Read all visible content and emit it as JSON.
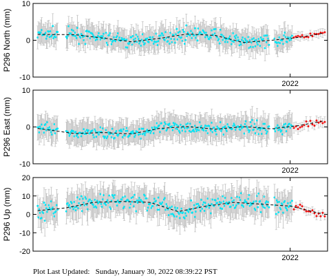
{
  "chart_data": [
    {
      "type": "scatter",
      "title": "",
      "ylabel": "P296 North (mm)",
      "ylim": [
        -10,
        10
      ],
      "yticks": [
        -10,
        0,
        10
      ],
      "xlim": [
        2019.25,
        2022.4
      ],
      "xtick_label": "2022",
      "xtick_value": 2022.0,
      "grid": false,
      "trend": {
        "x": [
          2019.3,
          2019.7,
          2020.0,
          2020.3,
          2020.6,
          2020.9,
          2021.2,
          2021.5,
          2021.8,
          2022.1,
          2022.35
        ],
        "y": [
          1.6,
          1.5,
          0.6,
          -0.4,
          0.5,
          1.7,
          1.3,
          -0.6,
          0.0,
          0.8,
          1.9
        ]
      },
      "series": [
        {
          "color": "#00e5f5",
          "region": [
            2019.3,
            2022.02
          ],
          "scatter": 2.2,
          "error": 2.8
        },
        {
          "color": "#ee1111",
          "region": [
            2022.04,
            2022.38
          ],
          "scatter": 0.9,
          "error": 1.0
        }
      ]
    },
    {
      "type": "scatter",
      "title": "",
      "ylabel": "P296 East (mm)",
      "ylim": [
        -10,
        10
      ],
      "yticks": [
        -10,
        0,
        10
      ],
      "xlim": [
        2019.25,
        2022.4
      ],
      "xtick_label": "2022",
      "xtick_value": 2022.0,
      "grid": false,
      "trend": {
        "x": [
          2019.3,
          2019.7,
          2020.0,
          2020.3,
          2020.6,
          2020.9,
          2021.2,
          2021.5,
          2021.8,
          2022.1,
          2022.35
        ],
        "y": [
          -0.4,
          -1.8,
          -1.5,
          -1.9,
          -0.4,
          0.1,
          -0.6,
          0.1,
          -0.5,
          0.4,
          1.6
        ]
      },
      "series": [
        {
          "color": "#00e5f5",
          "region": [
            2019.3,
            2022.02
          ],
          "scatter": 2.0,
          "error": 3.0
        },
        {
          "color": "#ee1111",
          "region": [
            2022.04,
            2022.38
          ],
          "scatter": 1.4,
          "error": 1.2
        }
      ]
    },
    {
      "type": "scatter",
      "title": "",
      "ylabel": "P296 Up (mm)",
      "ylim": [
        -20,
        20
      ],
      "yticks": [
        -20,
        -10,
        0,
        10,
        20
      ],
      "xlim": [
        2019.25,
        2022.4
      ],
      "xtick_label": "2022",
      "xtick_value": 2022.0,
      "grid": false,
      "trend": {
        "x": [
          2019.3,
          2019.6,
          2019.9,
          2020.2,
          2020.5,
          2020.8,
          2021.1,
          2021.4,
          2021.7,
          2022.0,
          2022.35
        ],
        "y": [
          2.0,
          3.5,
          6.5,
          7.0,
          6.5,
          1.5,
          4.5,
          6.5,
          5.5,
          4.5,
          0.2
        ]
      },
      "series": [
        {
          "color": "#00e5f5",
          "region": [
            2019.3,
            2022.02
          ],
          "scatter": 6.0,
          "error": 7.0
        },
        {
          "color": "#ee1111",
          "region": [
            2022.04,
            2022.38
          ],
          "scatter": 3.0,
          "error": 2.0
        }
      ]
    }
  ],
  "footer": {
    "label": "Plot Last Updated:",
    "timestamp": "Sunday, January 30, 2022 08:39:22 PST"
  }
}
